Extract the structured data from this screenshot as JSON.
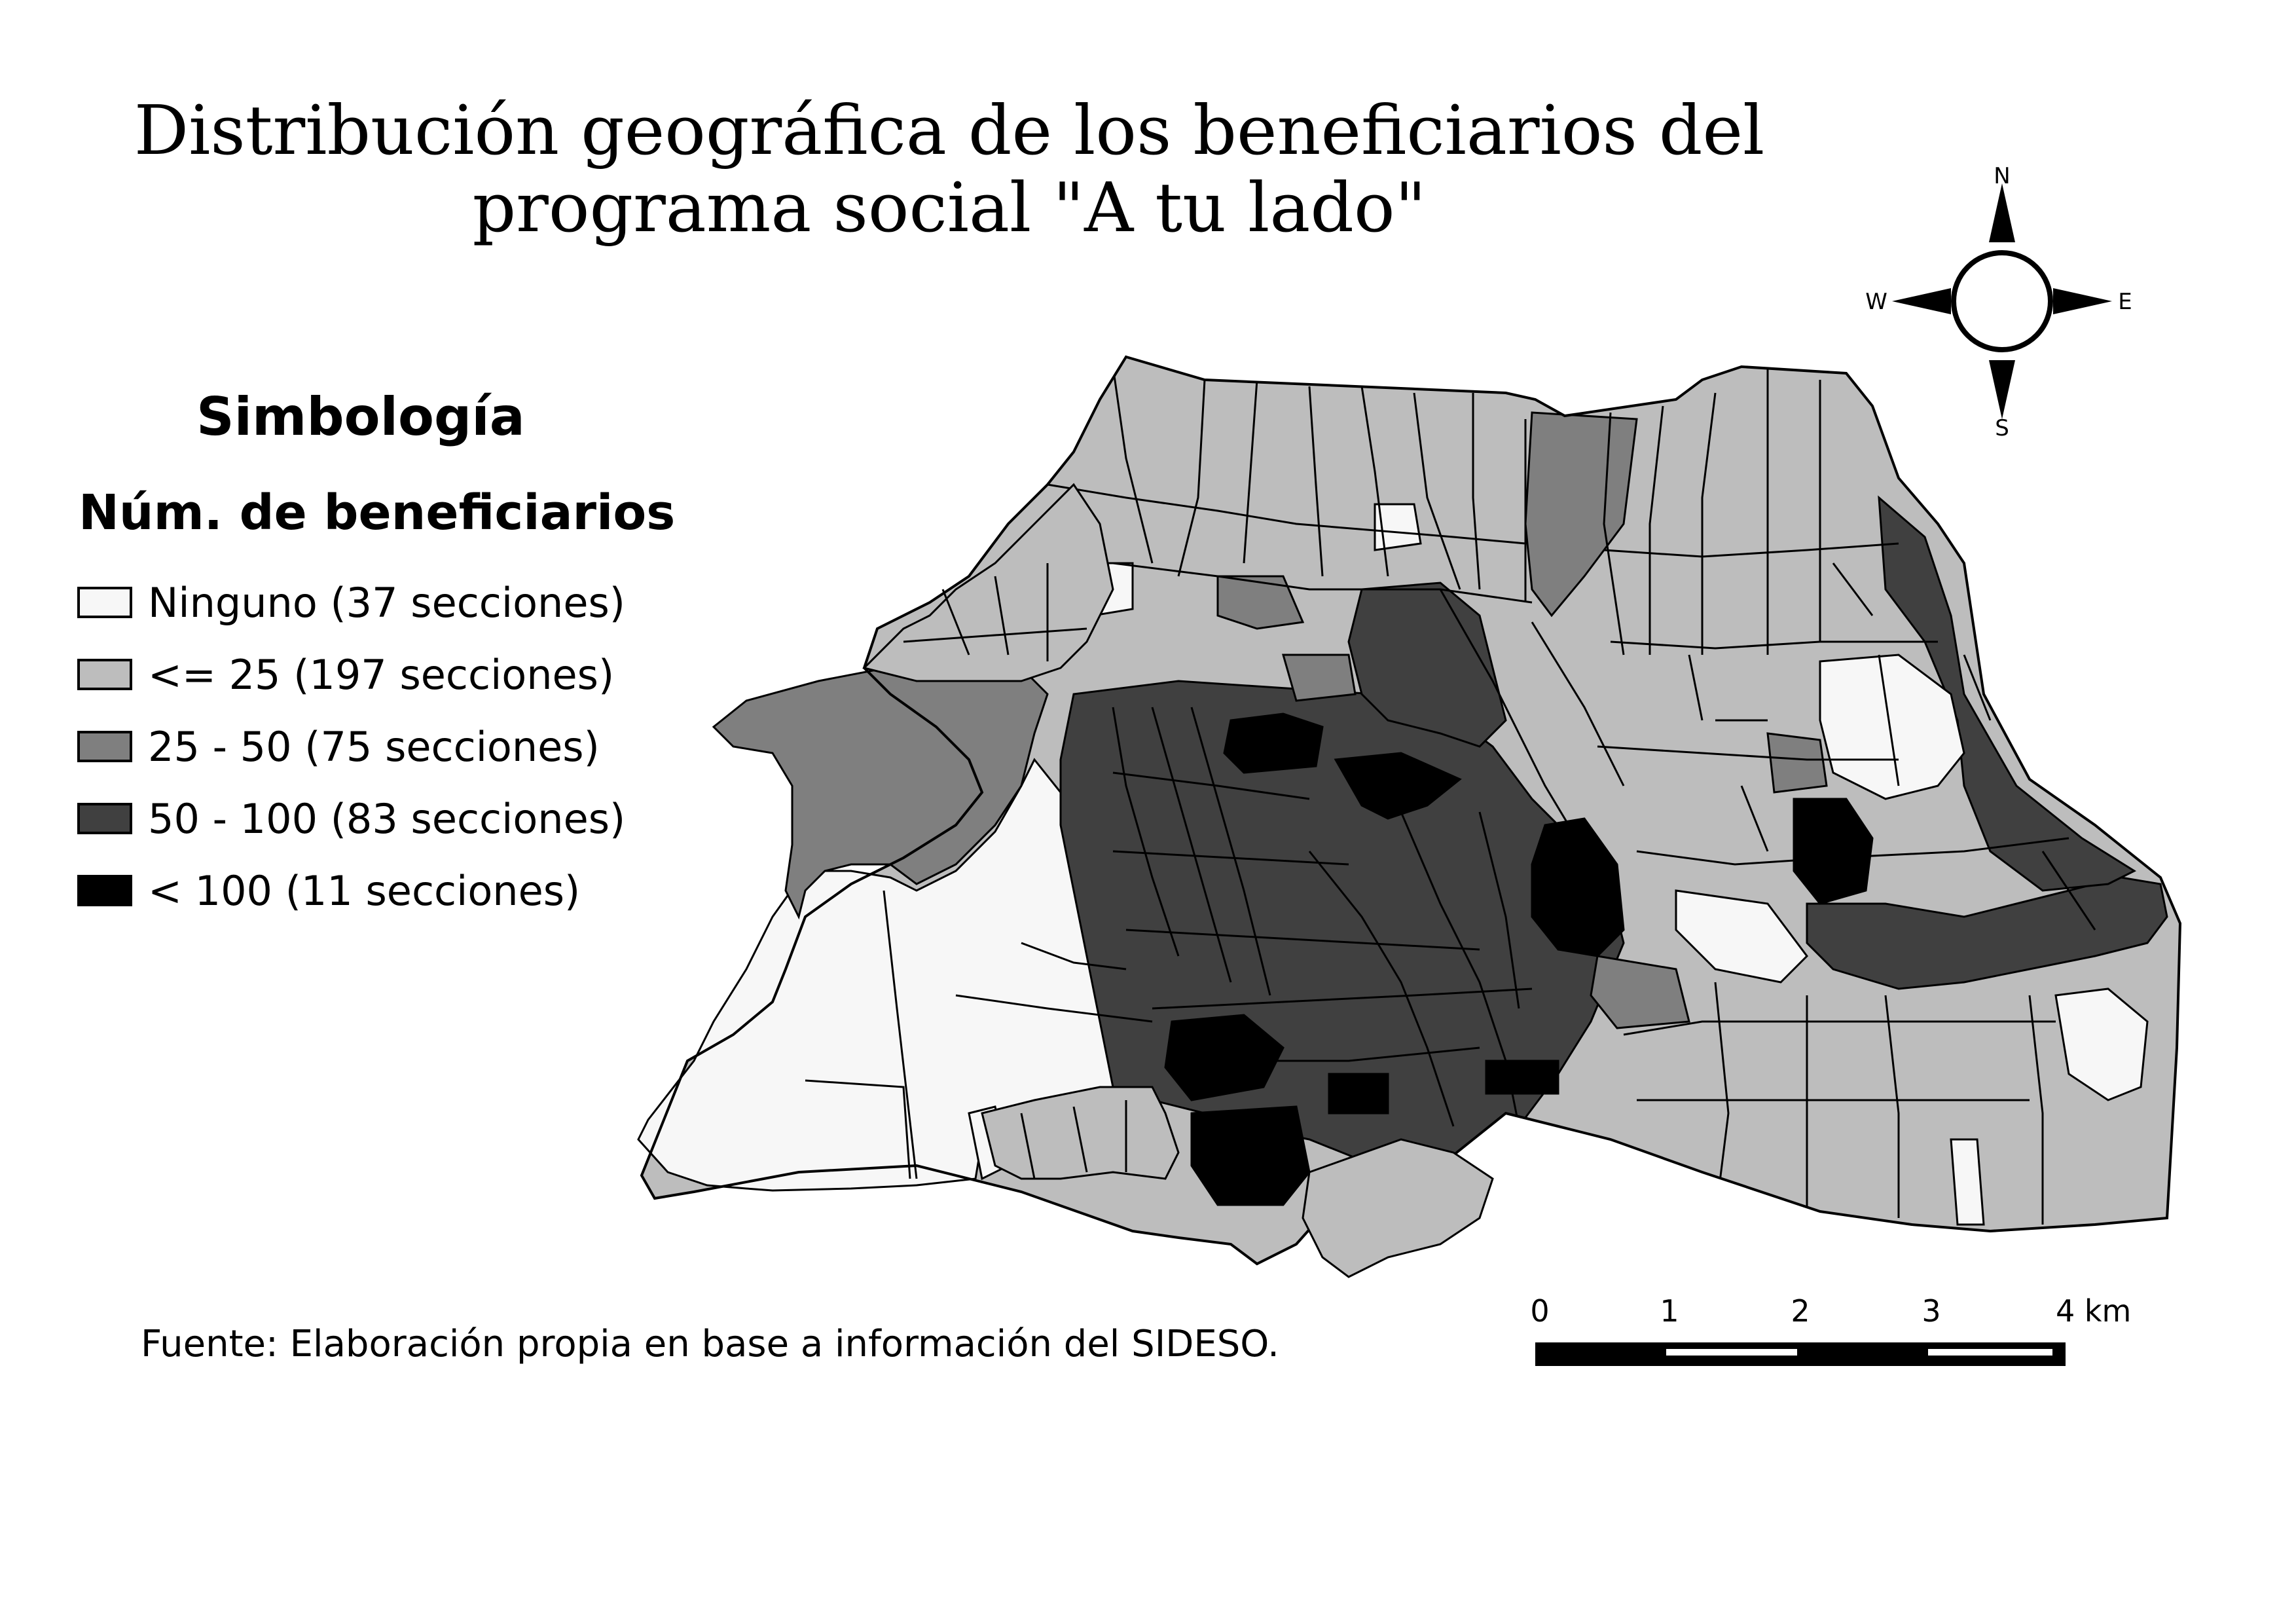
{
  "title": "Distribución geográfica de los beneficiarios del programa social \"A tu lado\"",
  "title_lines": [
    "Distribución geográfica de los beneficiarios del",
    "programa social \"A tu lado\""
  ],
  "legend": {
    "heading": "Simbología",
    "subheading": "Núm. de beneficiarios",
    "items": [
      {
        "label": "Ninguno (37 secciones)",
        "color": "#f7f7f7"
      },
      {
        "label": "<= 25 (197 secciones)",
        "color": "#bdbdbd"
      },
      {
        "label": " 25 - 50 (75 secciones)",
        "color": "#7f7f7f"
      },
      {
        "label": " 50 - 100 (83 secciones)",
        "color": "#404040"
      },
      {
        "label": "< 100 (11 secciones)",
        "color": "#000000"
      }
    ]
  },
  "north_arrow": {
    "n": "N",
    "s": "S",
    "e": "E",
    "w": "W"
  },
  "scale_bar": {
    "ticks": [
      "0",
      "1",
      "2",
      "3",
      "4 km"
    ]
  },
  "source": "Fuente: Elaboración propia en base a información del SIDESO."
}
